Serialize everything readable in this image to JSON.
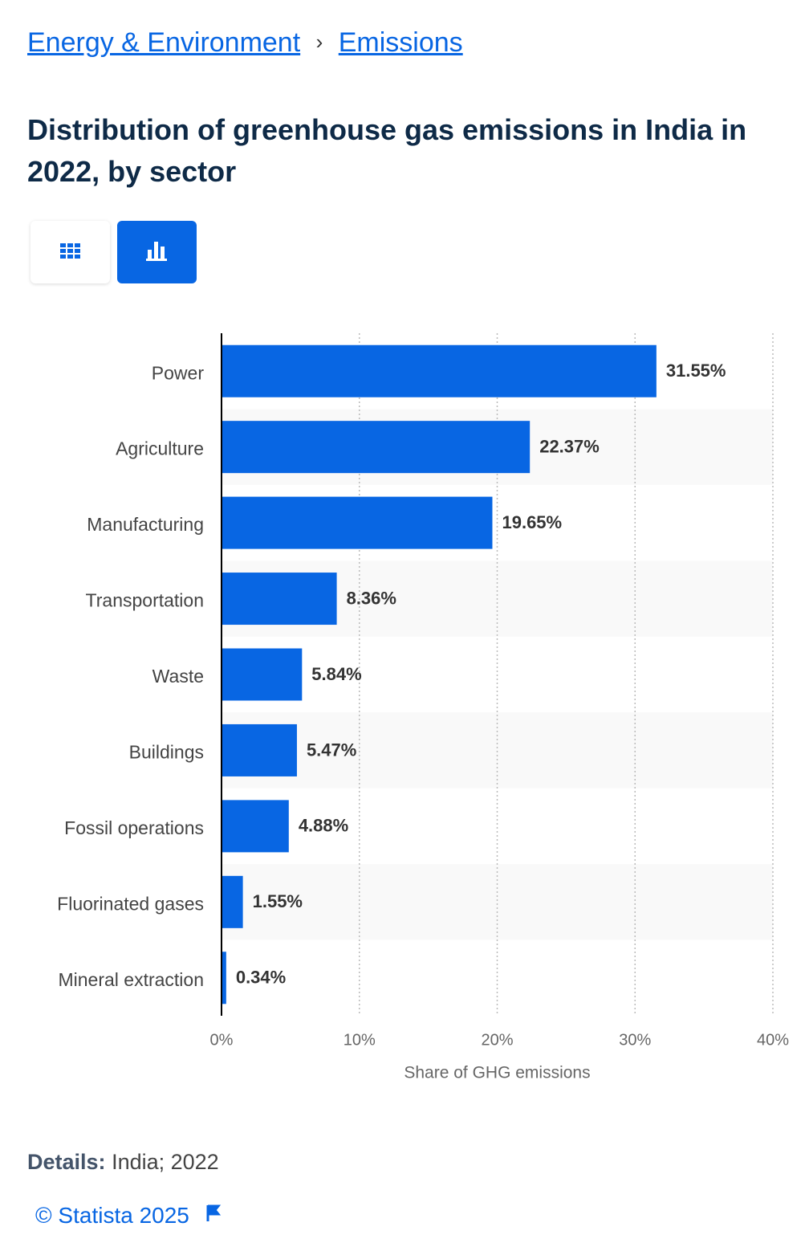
{
  "breadcrumb": [
    "Energy & Environment",
    "Emissions"
  ],
  "breadcrumb_separator": "›",
  "chart_data": {
    "type": "bar",
    "orientation": "horizontal",
    "title": "Distribution of greenhouse gas emissions in India in 2022, by sector",
    "categories": [
      "Power",
      "Agriculture",
      "Manufacturing",
      "Transportation",
      "Waste",
      "Buildings",
      "Fossil operations",
      "Fluorinated gases",
      "Mineral extraction"
    ],
    "values": [
      31.55,
      22.37,
      19.65,
      8.36,
      5.84,
      5.47,
      4.88,
      1.55,
      0.34
    ],
    "value_labels": [
      "31.55%",
      "22.37%",
      "19.65%",
      "8.36%",
      "5.84%",
      "5.47%",
      "4.88%",
      "1.55%",
      "0.34%"
    ],
    "color": "#0866e3",
    "xlim": [
      0,
      40
    ],
    "xticks": [
      {
        "value": 0,
        "label": "0%"
      },
      {
        "value": 10,
        "label": "10%"
      },
      {
        "value": 20,
        "label": "20%"
      },
      {
        "value": 30,
        "label": "30%"
      },
      {
        "value": 40,
        "label": "40%"
      }
    ],
    "x_label": "Share of GHG emissions",
    "grid": true
  },
  "details": {
    "label": "Details:",
    "text": "India; 2022"
  },
  "copyright": "© Statista 2025"
}
